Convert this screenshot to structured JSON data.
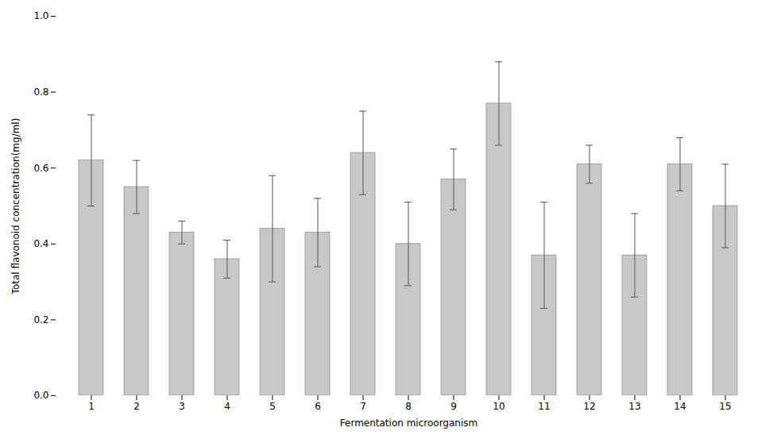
{
  "chart_data": {
    "type": "bar",
    "categories": [
      1,
      2,
      3,
      4,
      5,
      6,
      7,
      8,
      9,
      10,
      11,
      12,
      13,
      14,
      15
    ],
    "values": [
      0.62,
      0.55,
      0.43,
      0.36,
      0.44,
      0.43,
      0.64,
      0.4,
      0.57,
      0.77,
      0.37,
      0.61,
      0.37,
      0.61,
      0.5
    ],
    "errors": [
      0.12,
      0.07,
      0.03,
      0.05,
      0.14,
      0.09,
      0.11,
      0.11,
      0.08,
      0.11,
      0.14,
      0.05,
      0.11,
      0.07,
      0.11
    ],
    "color": "#c8c8c8",
    "xlabel": "Fermentation microorganism",
    "ylabel": "Total flavonoid concentration(mg/ml)",
    "ylim": [
      0.0,
      1.0
    ],
    "yticks": [
      {
        "value": 0,
        "label": "0.0"
      },
      0.2,
      0.4,
      0.6,
      0.8,
      {
        "value": 1,
        "label": "1.0"
      }
    ],
    "grid": false
  }
}
